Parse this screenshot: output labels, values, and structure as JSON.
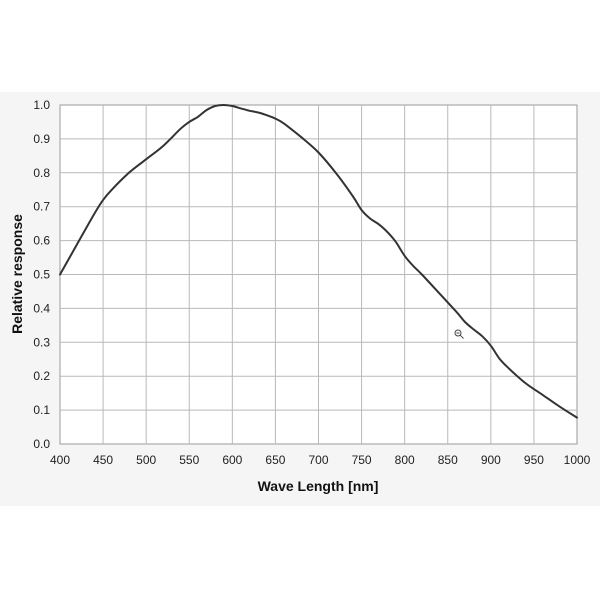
{
  "chart_data": {
    "type": "line",
    "title": "",
    "xlabel": "Wave Length [nm]",
    "ylabel": "Relative response",
    "xlim": [
      400,
      1000
    ],
    "ylim": [
      0.0,
      1.0
    ],
    "xticks": [
      400,
      450,
      500,
      550,
      600,
      650,
      700,
      750,
      800,
      850,
      900,
      950,
      1000
    ],
    "yticks": [
      "0.0",
      "0.1",
      "0.2",
      "0.3",
      "0.4",
      "0.5",
      "0.6",
      "0.7",
      "0.8",
      "0.9",
      "1.0"
    ],
    "grid": true,
    "line_color": "#333333",
    "series": [
      {
        "x": [
          400,
          420,
          440,
          450,
          460,
          480,
          500,
          520,
          540,
          550,
          560,
          570,
          580,
          590,
          600,
          610,
          620,
          630,
          640,
          650,
          660,
          680,
          700,
          720,
          740,
          750,
          760,
          770,
          780,
          790,
          800,
          810,
          820,
          840,
          860,
          870,
          880,
          890,
          900,
          910,
          920,
          940,
          960,
          980,
          1000
        ],
        "y": [
          0.5,
          0.59,
          0.68,
          0.72,
          0.75,
          0.8,
          0.84,
          0.88,
          0.93,
          0.95,
          0.965,
          0.985,
          0.997,
          1.0,
          0.997,
          0.99,
          0.983,
          0.978,
          0.97,
          0.96,
          0.945,
          0.905,
          0.86,
          0.8,
          0.73,
          0.69,
          0.665,
          0.648,
          0.625,
          0.595,
          0.555,
          0.525,
          0.5,
          0.445,
          0.39,
          0.36,
          0.338,
          0.318,
          0.29,
          0.252,
          0.225,
          0.18,
          0.145,
          0.11,
          0.078
        ]
      }
    ]
  }
}
